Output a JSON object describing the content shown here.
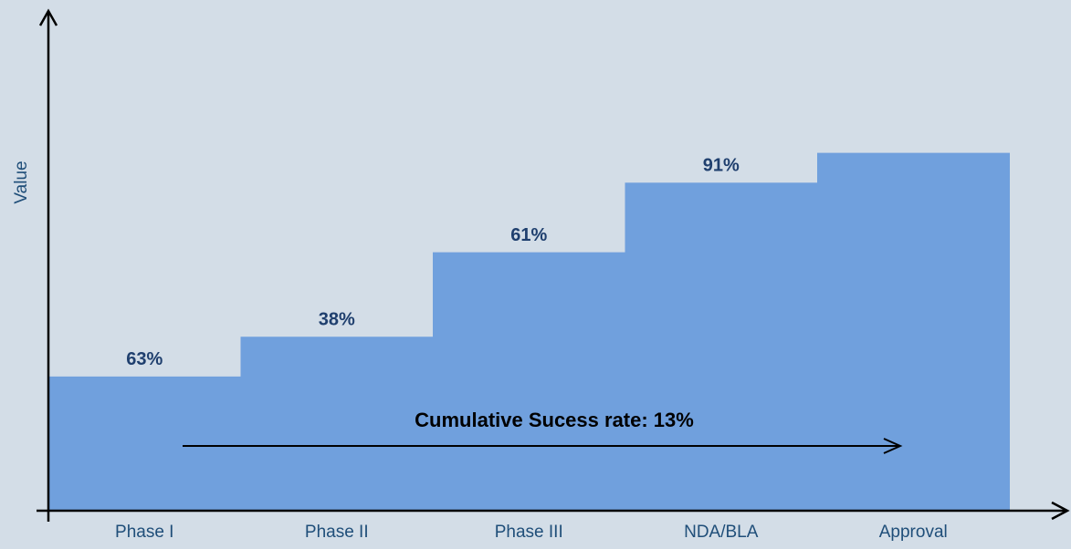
{
  "chart_data": {
    "type": "step-bar",
    "y_label": "Value",
    "categories": [
      "Phase I",
      "Phase II",
      "Phase III",
      "NDA/BLA",
      "Approval"
    ],
    "values": [
      27,
      35,
      52,
      66,
      72
    ],
    "color": "#70a0dd",
    "ylim": [
      0,
      100
    ],
    "stage_rates": {
      "values": [
        63,
        38,
        61,
        91
      ],
      "value_labels": [
        "63%",
        "38%",
        "61%",
        "91%"
      ]
    },
    "annotation": "Cumulative Sucess rate: 13%"
  }
}
